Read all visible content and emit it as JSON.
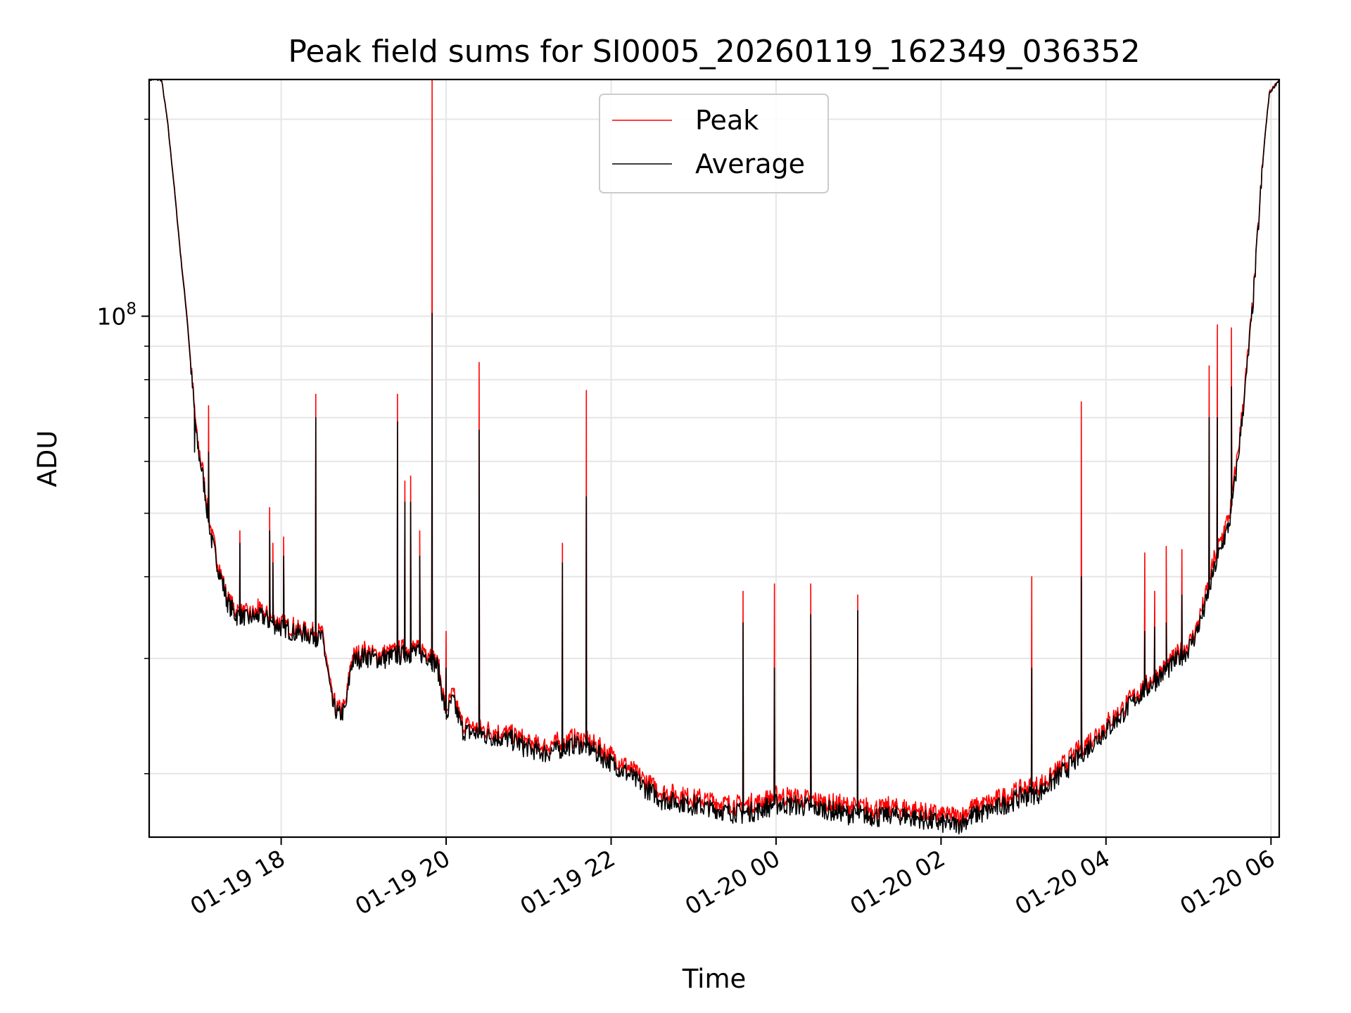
{
  "chart_data": {
    "type": "line",
    "title": "Peak field sums for SI0005_20260119_162349_036352",
    "xlabel": "Time",
    "ylabel": "ADU",
    "yscale": "log",
    "ylim": [
      16000000,
      230000000
    ],
    "xlim_hours": [
      16.4,
      30.1
    ],
    "x_units": "hours since 2026-01-19 00:00",
    "grid": true,
    "legend_position": "upper center",
    "x_ticks": [
      {
        "value": 18,
        "label": "01-19 18"
      },
      {
        "value": 20,
        "label": "01-19 20"
      },
      {
        "value": 22,
        "label": "01-19 22"
      },
      {
        "value": 24,
        "label": "01-20 00"
      },
      {
        "value": 26,
        "label": "01-20 02"
      },
      {
        "value": 28,
        "label": "01-20 04"
      },
      {
        "value": 30,
        "label": "01-20 06"
      }
    ],
    "y_major_ticks": [
      {
        "value": 100000000,
        "base": "10",
        "exponent": "8"
      }
    ],
    "y_minor_ticks": [
      20000000,
      30000000,
      40000000,
      50000000,
      60000000,
      70000000,
      80000000,
      90000000,
      200000000
    ],
    "series": [
      {
        "name": "Peak",
        "color": "#ff0000",
        "points": [
          [
            16.4,
            230000000
          ],
          [
            16.55,
            230000000
          ],
          [
            16.62,
            200000000
          ],
          [
            16.7,
            160000000
          ],
          [
            16.78,
            125000000
          ],
          [
            16.86,
            100000000
          ],
          [
            16.92,
            80000000
          ],
          [
            16.98,
            65000000
          ],
          [
            17.05,
            58000000
          ],
          [
            17.1,
            52000000
          ],
          [
            17.15,
            47000000
          ],
          [
            17.2,
            44000000
          ],
          [
            17.28,
            40000000
          ],
          [
            17.35,
            37000000
          ],
          [
            17.45,
            35500000
          ],
          [
            17.6,
            35000000
          ],
          [
            17.75,
            35300000
          ],
          [
            17.85,
            34800000
          ],
          [
            18.0,
            34000000
          ],
          [
            18.2,
            33300000
          ],
          [
            18.38,
            33000000
          ],
          [
            18.5,
            32700000
          ],
          [
            18.55,
            30000000
          ],
          [
            18.62,
            26000000
          ],
          [
            18.7,
            25000000
          ],
          [
            18.78,
            25500000
          ],
          [
            18.85,
            30000000
          ],
          [
            19.0,
            30800000
          ],
          [
            19.2,
            30400000
          ],
          [
            19.4,
            30800000
          ],
          [
            19.6,
            31200000
          ],
          [
            19.8,
            30700000
          ],
          [
            19.9,
            29500000
          ],
          [
            20.0,
            25000000
          ],
          [
            20.08,
            26500000
          ],
          [
            20.2,
            23800000
          ],
          [
            20.4,
            23500000
          ],
          [
            20.6,
            23200000
          ],
          [
            20.8,
            23000000
          ],
          [
            21.0,
            22300000
          ],
          [
            21.2,
            22000000
          ],
          [
            21.4,
            22400000
          ],
          [
            21.6,
            22700000
          ],
          [
            21.8,
            22200000
          ],
          [
            22.0,
            21300000
          ],
          [
            22.2,
            20500000
          ],
          [
            22.4,
            19600000
          ],
          [
            22.6,
            18800000
          ],
          [
            22.8,
            18600000
          ],
          [
            23.0,
            18400000
          ],
          [
            23.2,
            18200000
          ],
          [
            23.4,
            18000000
          ],
          [
            23.6,
            17900000
          ],
          [
            23.8,
            18100000
          ],
          [
            24.0,
            18500000
          ],
          [
            24.2,
            18400000
          ],
          [
            24.4,
            18300000
          ],
          [
            24.6,
            18100000
          ],
          [
            24.8,
            17900000
          ],
          [
            25.0,
            17800000
          ],
          [
            25.2,
            17700000
          ],
          [
            25.4,
            17800000
          ],
          [
            25.6,
            17700000
          ],
          [
            25.8,
            17500000
          ],
          [
            26.0,
            17300000
          ],
          [
            26.2,
            17200000
          ],
          [
            26.4,
            17800000
          ],
          [
            26.6,
            18100000
          ],
          [
            26.8,
            18500000
          ],
          [
            27.0,
            19000000
          ],
          [
            27.2,
            19200000
          ],
          [
            27.4,
            20200000
          ],
          [
            27.6,
            21300000
          ],
          [
            27.8,
            22500000
          ],
          [
            28.0,
            23800000
          ],
          [
            28.2,
            25200000
          ],
          [
            28.4,
            26800000
          ],
          [
            28.6,
            28300000
          ],
          [
            28.8,
            29800000
          ],
          [
            29.0,
            31500000
          ],
          [
            29.1,
            33500000
          ],
          [
            29.2,
            37000000
          ],
          [
            29.3,
            42000000
          ],
          [
            29.4,
            46000000
          ],
          [
            29.5,
            50000000
          ],
          [
            29.6,
            62000000
          ],
          [
            29.7,
            82000000
          ],
          [
            29.78,
            105000000
          ],
          [
            29.85,
            140000000
          ],
          [
            29.92,
            185000000
          ],
          [
            29.98,
            220000000
          ],
          [
            30.1,
            230000000
          ]
        ],
        "spikes": [
          [
            16.95,
            73000000
          ],
          [
            17.12,
            73000000
          ],
          [
            17.5,
            47000000
          ],
          [
            17.72,
            37000000
          ],
          [
            17.86,
            51000000
          ],
          [
            17.9,
            45000000
          ],
          [
            18.03,
            46000000
          ],
          [
            18.42,
            76000000
          ],
          [
            19.41,
            76000000
          ],
          [
            19.5,
            56000000
          ],
          [
            19.57,
            57000000
          ],
          [
            19.68,
            47000000
          ],
          [
            19.83,
            230000000
          ],
          [
            20.0,
            33000000
          ],
          [
            20.4,
            85000000
          ],
          [
            21.41,
            45000000
          ],
          [
            21.7,
            77000000
          ],
          [
            23.6,
            38000000
          ],
          [
            23.98,
            39000000
          ],
          [
            24.42,
            39000000
          ],
          [
            24.99,
            37500000
          ],
          [
            27.1,
            40000000
          ],
          [
            27.7,
            74000000
          ],
          [
            28.47,
            43500000
          ],
          [
            28.59,
            38000000
          ],
          [
            28.73,
            44500000
          ],
          [
            28.92,
            44000000
          ],
          [
            29.25,
            84000000
          ],
          [
            29.35,
            97000000
          ],
          [
            29.52,
            96000000
          ]
        ]
      },
      {
        "name": "Average",
        "color": "#000000",
        "points": [
          [
            16.4,
            230000000
          ],
          [
            16.55,
            230000000
          ],
          [
            16.62,
            199000000
          ],
          [
            16.7,
            159000000
          ],
          [
            16.78,
            124000000
          ],
          [
            16.86,
            99000000
          ],
          [
            16.92,
            79000000
          ],
          [
            16.98,
            64000000
          ],
          [
            17.05,
            57000000
          ],
          [
            17.1,
            51000000
          ],
          [
            17.15,
            46000000
          ],
          [
            17.2,
            43000000
          ],
          [
            17.28,
            39500000
          ],
          [
            17.35,
            36500000
          ],
          [
            17.45,
            35000000
          ],
          [
            17.6,
            34500000
          ],
          [
            17.75,
            34800000
          ],
          [
            17.85,
            34300000
          ],
          [
            18.0,
            33500000
          ],
          [
            18.2,
            32800000
          ],
          [
            18.38,
            32500000
          ],
          [
            18.5,
            32200000
          ],
          [
            18.55,
            29500000
          ],
          [
            18.62,
            25500000
          ],
          [
            18.7,
            24500000
          ],
          [
            18.78,
            25000000
          ],
          [
            18.85,
            29500000
          ],
          [
            19.0,
            30300000
          ],
          [
            19.2,
            29900000
          ],
          [
            19.4,
            30300000
          ],
          [
            19.6,
            30700000
          ],
          [
            19.8,
            30200000
          ],
          [
            19.9,
            29000000
          ],
          [
            20.0,
            24500000
          ],
          [
            20.08,
            26000000
          ],
          [
            20.2,
            23300000
          ],
          [
            20.4,
            23000000
          ],
          [
            20.6,
            22700000
          ],
          [
            20.8,
            22500000
          ],
          [
            21.0,
            21800000
          ],
          [
            21.2,
            21500000
          ],
          [
            21.4,
            21900000
          ],
          [
            21.6,
            22200000
          ],
          [
            21.8,
            21700000
          ],
          [
            22.0,
            20800000
          ],
          [
            22.2,
            20000000
          ],
          [
            22.4,
            19100000
          ],
          [
            22.6,
            18300000
          ],
          [
            22.8,
            18100000
          ],
          [
            23.0,
            17900000
          ],
          [
            23.2,
            17700000
          ],
          [
            23.4,
            17500000
          ],
          [
            23.6,
            17400000
          ],
          [
            23.8,
            17600000
          ],
          [
            24.0,
            18000000
          ],
          [
            24.2,
            17900000
          ],
          [
            24.4,
            17800000
          ],
          [
            24.6,
            17600000
          ],
          [
            24.8,
            17400000
          ],
          [
            25.0,
            17300000
          ],
          [
            25.2,
            17200000
          ],
          [
            25.4,
            17300000
          ],
          [
            25.6,
            17200000
          ],
          [
            25.8,
            17000000
          ],
          [
            26.0,
            16800000
          ],
          [
            26.2,
            16700000
          ],
          [
            26.4,
            17300000
          ],
          [
            26.6,
            17600000
          ],
          [
            26.8,
            18000000
          ],
          [
            27.0,
            18500000
          ],
          [
            27.2,
            18700000
          ],
          [
            27.4,
            19700000
          ],
          [
            27.6,
            20800000
          ],
          [
            27.8,
            22000000
          ],
          [
            28.0,
            23300000
          ],
          [
            28.2,
            24700000
          ],
          [
            28.4,
            26300000
          ],
          [
            28.6,
            27800000
          ],
          [
            28.8,
            29300000
          ],
          [
            29.0,
            31000000
          ],
          [
            29.1,
            33000000
          ],
          [
            29.2,
            36000000
          ],
          [
            29.3,
            40500000
          ],
          [
            29.4,
            44500000
          ],
          [
            29.5,
            48500000
          ],
          [
            29.6,
            60500000
          ],
          [
            29.7,
            80500000
          ],
          [
            29.78,
            104000000
          ],
          [
            29.85,
            139000000
          ],
          [
            29.92,
            184000000
          ],
          [
            29.98,
            219000000
          ],
          [
            30.1,
            230000000
          ]
        ],
        "spikes": [
          [
            16.95,
            62000000
          ],
          [
            17.12,
            62000000
          ],
          [
            17.5,
            45000000
          ],
          [
            17.72,
            35000000
          ],
          [
            17.86,
            47000000
          ],
          [
            17.9,
            42000000
          ],
          [
            18.03,
            43000000
          ],
          [
            18.42,
            70000000
          ],
          [
            19.41,
            69000000
          ],
          [
            19.5,
            52000000
          ],
          [
            19.57,
            52000000
          ],
          [
            19.68,
            43000000
          ],
          [
            19.83,
            101000000
          ],
          [
            20.0,
            29000000
          ],
          [
            20.4,
            67000000
          ],
          [
            21.41,
            42000000
          ],
          [
            21.7,
            53000000
          ],
          [
            23.6,
            34000000
          ],
          [
            23.98,
            29000000
          ],
          [
            24.42,
            35000000
          ],
          [
            24.99,
            35500000
          ],
          [
            27.1,
            29000000
          ],
          [
            27.7,
            40000000
          ],
          [
            28.47,
            33000000
          ],
          [
            28.59,
            33500000
          ],
          [
            28.73,
            34000000
          ],
          [
            28.92,
            37500000
          ],
          [
            29.25,
            70000000
          ],
          [
            29.35,
            70000000
          ],
          [
            29.52,
            78000000
          ]
        ]
      }
    ]
  }
}
